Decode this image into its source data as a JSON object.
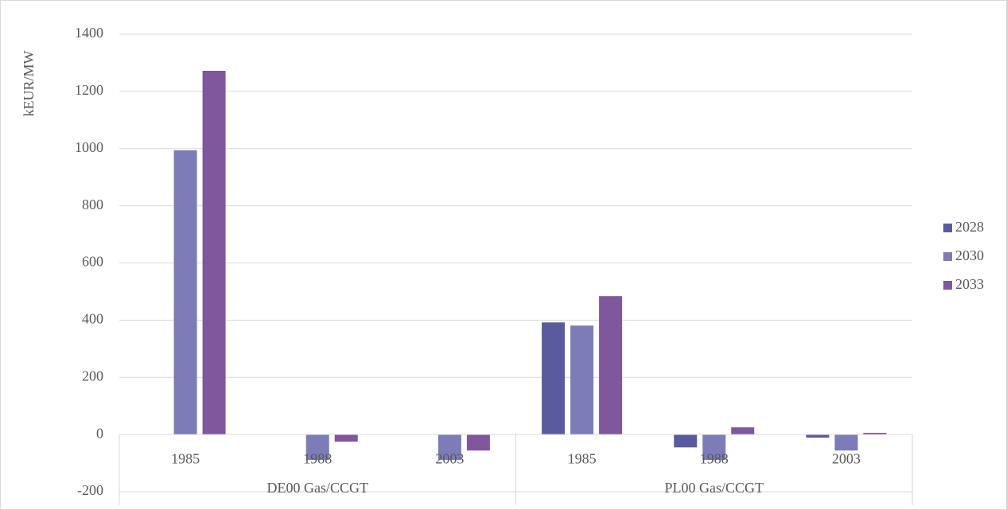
{
  "chart_data": {
    "type": "bar",
    "y_label": "kEUR/MW",
    "categories": [
      "1985",
      "1988",
      "2003",
      "1985",
      "1988",
      "2003"
    ],
    "groups": [
      "DE00 Gas/CCGT",
      "PL00 Gas/CCGT"
    ],
    "series": [
      {
        "name": "2028",
        "color": "#5a5b9f",
        "values": [
          null,
          null,
          null,
          392,
          -45,
          -11
        ]
      },
      {
        "name": "2030",
        "color": "#7b7cb8",
        "values": [
          994,
          -89,
          -89,
          381,
          -89,
          -56
        ]
      },
      {
        "name": "2033",
        "color": "#7f579c",
        "values": [
          1272,
          -25,
          -56,
          484,
          25,
          6
        ]
      }
    ],
    "ylim": [
      -200,
      1400
    ],
    "yticks": [
      -200,
      0,
      200,
      400,
      600,
      800,
      1000,
      1200,
      1400
    ],
    "grid": true,
    "legend": "right"
  }
}
